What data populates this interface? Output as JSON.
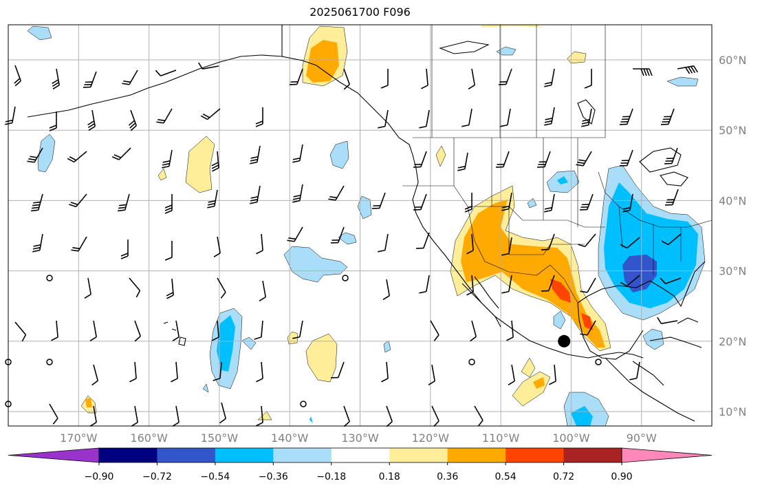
{
  "title": "2025061700 F096",
  "map": {
    "lon_labels": [
      "170°W",
      "160°W",
      "150°W",
      "140°W",
      "130°W",
      "120°W",
      "110°W",
      "100°W",
      "90°W"
    ],
    "lat_labels": [
      "60°N",
      "50°N",
      "40°N",
      "30°N",
      "20°N",
      "10°N"
    ],
    "grid": true,
    "extent": {
      "lon": [
        -180,
        -80
      ],
      "lat": [
        8,
        65
      ]
    },
    "marker": {
      "lon": -101,
      "lat": 20,
      "label": ""
    }
  },
  "colorbar": {
    "colors": [
      "#9933cc",
      "#000080",
      "#3355cc",
      "#00bfff",
      "#aaddf7",
      "#ffffff",
      "#ffee99",
      "#ffaa00",
      "#ff4400",
      "#aa2222",
      "#ff88bb"
    ],
    "ticks": [
      "−0.90",
      "−0.72",
      "−0.54",
      "−0.36",
      "−0.18",
      "0.18",
      "0.36",
      "0.54",
      "0.72",
      "0.90"
    ],
    "extend": "both"
  },
  "fills": {
    "light_blue": "#aaddf7",
    "blue": "#00bfff",
    "dark_blue": "#3355cc",
    "yellow": "#ffee99",
    "orange": "#ffaa00",
    "red_orange": "#ff4400",
    "dark_red": "#aa2222"
  }
}
